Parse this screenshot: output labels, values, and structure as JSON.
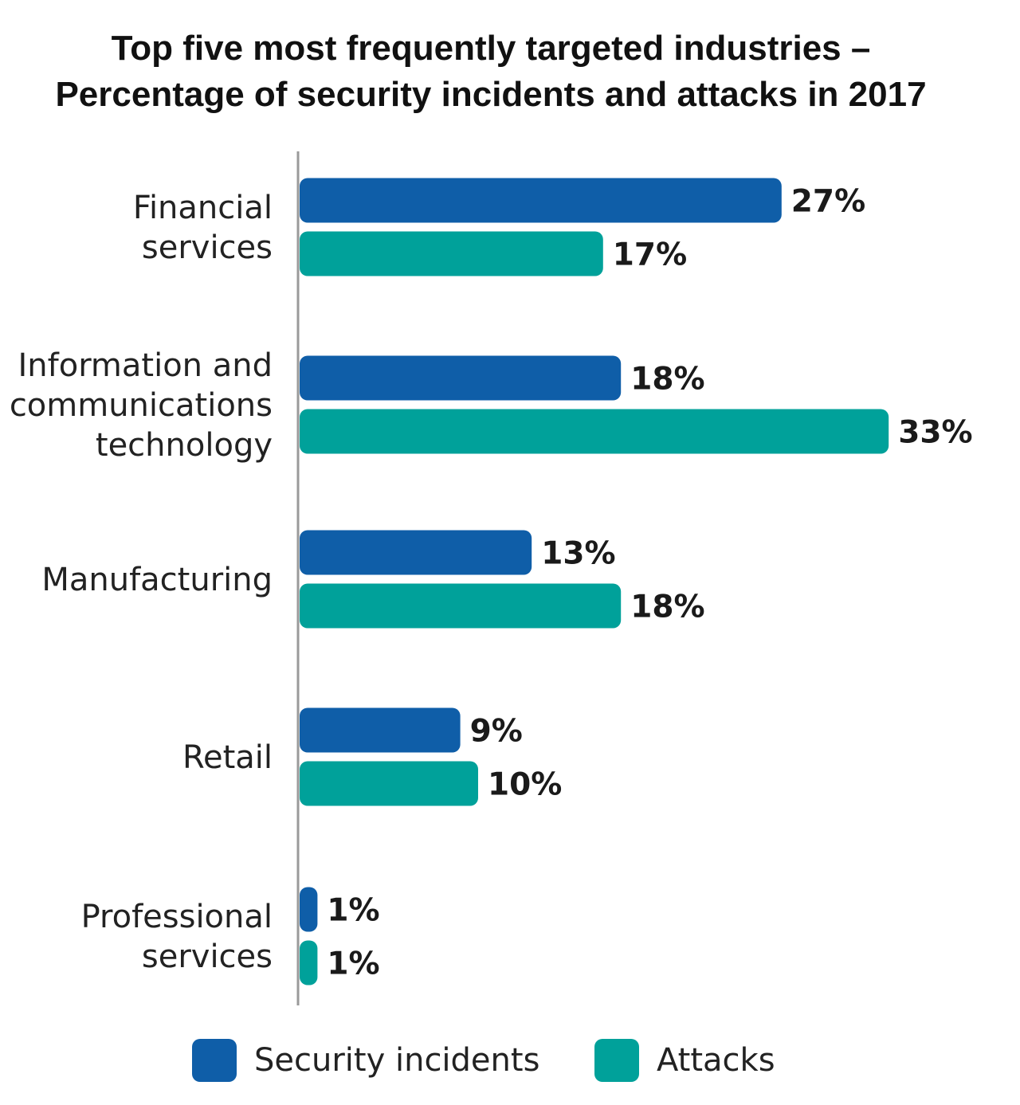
{
  "chart_data": {
    "type": "bar",
    "orientation": "horizontal",
    "title": "Top five most frequently targeted industries –",
    "subtitle": "Percentage of security incidents and attacks in 2017",
    "categories": [
      [
        "Financial",
        "services"
      ],
      [
        "Information and",
        "communications",
        "technology"
      ],
      [
        "Manufacturing"
      ],
      [
        "Retail"
      ],
      [
        "Professional",
        "services"
      ]
    ],
    "series": [
      {
        "name": "Security incidents",
        "color": "#0f5ea8",
        "values": [
          27,
          18,
          13,
          9,
          1
        ],
        "labels": [
          "27%",
          "18%",
          "13%",
          "9%",
          "1%"
        ]
      },
      {
        "name": "Attacks",
        "color": "#00a19a",
        "values": [
          17,
          33,
          18,
          10,
          1
        ],
        "labels": [
          "17%",
          "33%",
          "18%",
          "10%",
          "1%"
        ]
      }
    ],
    "unit": "%",
    "xlim": [
      0,
      35
    ],
    "grid": false,
    "legend_position": "bottom"
  }
}
